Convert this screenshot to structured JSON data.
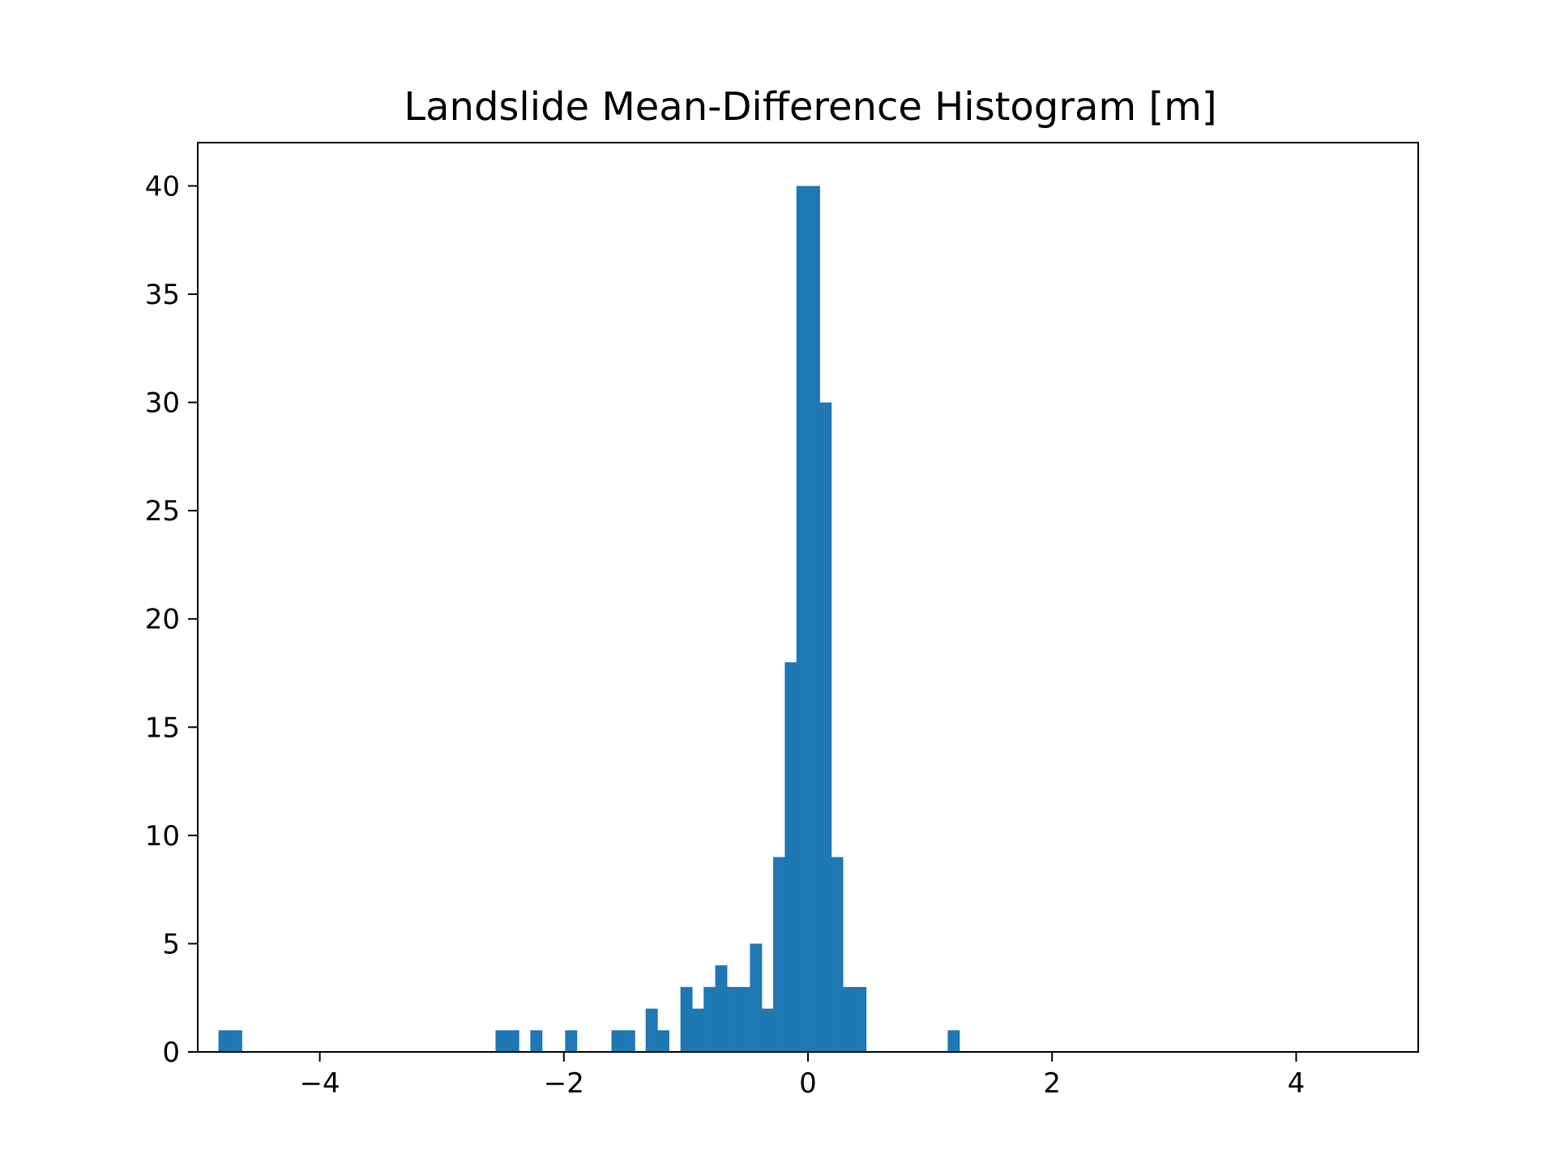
{
  "chart_data": {
    "type": "bar",
    "title": "Landslide Mean-Difference Histogram [m]",
    "xlabel": "",
    "ylabel": "",
    "xlim": [
      -5,
      5
    ],
    "ylim": [
      0,
      42
    ],
    "xticks": [
      -4,
      -2,
      0,
      2,
      4
    ],
    "xtick_labels": [
      "−4",
      "−2",
      "0",
      "2",
      "4"
    ],
    "yticks": [
      0,
      5,
      10,
      15,
      20,
      25,
      30,
      35,
      40
    ],
    "ytick_labels": [
      "0",
      "5",
      "10",
      "15",
      "20",
      "25",
      "30",
      "35",
      "40"
    ],
    "grid": false,
    "bar_color": "#1f77b4",
    "bin_width": 0.095,
    "bins": [
      {
        "x0": -4.83,
        "count": 1
      },
      {
        "x0": -4.735,
        "count": 1
      },
      {
        "x0": -2.56,
        "count": 1
      },
      {
        "x0": -2.465,
        "count": 1
      },
      {
        "x0": -2.275,
        "count": 1
      },
      {
        "x0": -1.99,
        "count": 1
      },
      {
        "x0": -1.61,
        "count": 1
      },
      {
        "x0": -1.515,
        "count": 1
      },
      {
        "x0": -1.33,
        "count": 2
      },
      {
        "x0": -1.235,
        "count": 1
      },
      {
        "x0": -1.045,
        "count": 3
      },
      {
        "x0": -0.95,
        "count": 2
      },
      {
        "x0": -0.855,
        "count": 3
      },
      {
        "x0": -0.76,
        "count": 4
      },
      {
        "x0": -0.665,
        "count": 3
      },
      {
        "x0": -0.57,
        "count": 3
      },
      {
        "x0": -0.475,
        "count": 5
      },
      {
        "x0": -0.38,
        "count": 2
      },
      {
        "x0": -0.285,
        "count": 9
      },
      {
        "x0": -0.19,
        "count": 18
      },
      {
        "x0": -0.095,
        "count": 40
      },
      {
        "x0": 0.0,
        "count": 40
      },
      {
        "x0": 0.095,
        "count": 30
      },
      {
        "x0": 0.19,
        "count": 9
      },
      {
        "x0": 0.285,
        "count": 3
      },
      {
        "x0": 0.38,
        "count": 3
      },
      {
        "x0": 1.145,
        "count": 1
      }
    ]
  }
}
